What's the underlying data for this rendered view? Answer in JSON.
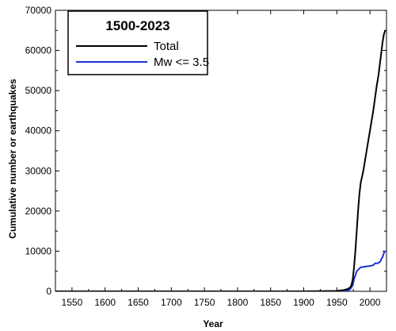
{
  "chart_data": {
    "type": "line",
    "xlabel": "Year",
    "ylabel": "Cumulative number or earthquakes",
    "xlim": [
      1525,
      2025
    ],
    "ylim": [
      0,
      70000
    ],
    "x_ticks": [
      1550,
      1600,
      1650,
      1700,
      1750,
      1800,
      1850,
      1900,
      1950,
      2000
    ],
    "y_ticks": [
      0,
      10000,
      20000,
      30000,
      40000,
      50000,
      60000,
      70000
    ],
    "x_tick_labels": [
      "1550",
      "1600",
      "1650",
      "1700",
      "1750",
      "1800",
      "1850",
      "1900",
      "1950",
      "2000"
    ],
    "y_tick_labels": [
      "0",
      "10000",
      "20000",
      "30000",
      "40000",
      "50000",
      "60000",
      "70000"
    ],
    "grid": false,
    "legend": {
      "title": "1500-2023",
      "placement": "top-left"
    },
    "series": [
      {
        "name": "Total",
        "color": "#000000",
        "points": [
          [
            1500,
            0
          ],
          [
            1590,
            0
          ],
          [
            1700,
            0
          ],
          [
            1800,
            0
          ],
          [
            1900,
            0
          ],
          [
            1950,
            100
          ],
          [
            1960,
            300
          ],
          [
            1965,
            500
          ],
          [
            1970,
            900
          ],
          [
            1972,
            1500
          ],
          [
            1974,
            3000
          ],
          [
            1976,
            6000
          ],
          [
            1978,
            10000
          ],
          [
            1980,
            15000
          ],
          [
            1982,
            20000
          ],
          [
            1984,
            24000
          ],
          [
            1986,
            27000
          ],
          [
            1990,
            30000
          ],
          [
            1995,
            35000
          ],
          [
            2000,
            40000
          ],
          [
            2005,
            45000
          ],
          [
            2010,
            51000
          ],
          [
            2013,
            54000
          ],
          [
            2016,
            58000
          ],
          [
            2019,
            62000
          ],
          [
            2021,
            64000
          ],
          [
            2023,
            65000
          ]
        ]
      },
      {
        "name": "Mw <= 3.5",
        "color": "#1f2fd6",
        "points": [
          [
            1500,
            0
          ],
          [
            1700,
            0
          ],
          [
            1900,
            0
          ],
          [
            1950,
            0
          ],
          [
            1965,
            200
          ],
          [
            1970,
            500
          ],
          [
            1974,
            1500
          ],
          [
            1976,
            3000
          ],
          [
            1978,
            4000
          ],
          [
            1980,
            5000
          ],
          [
            1983,
            5500
          ],
          [
            1986,
            6000
          ],
          [
            1990,
            6100
          ],
          [
            1995,
            6200
          ],
          [
            2000,
            6300
          ],
          [
            2005,
            6500
          ],
          [
            2008,
            7000
          ],
          [
            2012,
            7000
          ],
          [
            2014,
            7200
          ],
          [
            2016,
            7500
          ],
          [
            2017,
            8000
          ],
          [
            2018,
            8200
          ],
          [
            2019,
            8500
          ],
          [
            2020,
            9000
          ],
          [
            2021,
            9500
          ],
          [
            2022,
            9800
          ],
          [
            2023,
            10000
          ]
        ]
      }
    ]
  }
}
